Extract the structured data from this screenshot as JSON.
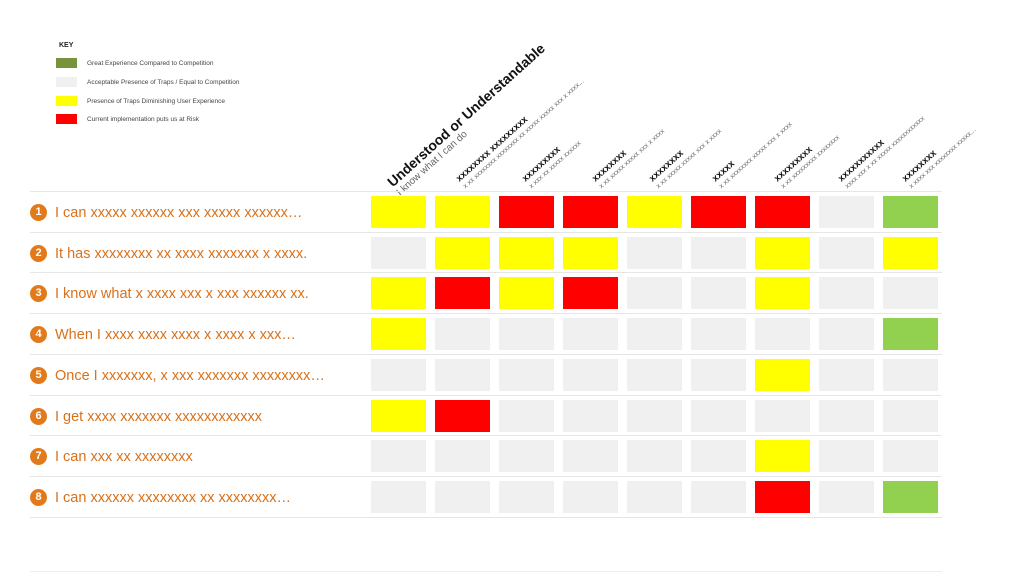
{
  "key": {
    "title": "KEY",
    "items": [
      {
        "label": "Great Experience Compared to Competition",
        "color": "#77933c"
      },
      {
        "label": "Acceptable Presence of Traps / Equal to Competition",
        "color": "#f0f0f0"
      },
      {
        "label": "Presence of Traps Diminishing User Experience",
        "color": "#ffff00"
      },
      {
        "label": "Current implementation puts us at Risk",
        "color": "#ff0000"
      }
    ]
  },
  "colors": {
    "green": "#92d050",
    "grey": "#f0f0f0",
    "yellow": "#ffff00",
    "red": "#ff0000",
    "row_text": "#d9711a",
    "row_number_bg": "#e27a1c"
  },
  "columns": [
    {
      "title": "Understood or Understandable",
      "subtitle": "I know what I can do"
    },
    {
      "title": "xxxxxxxx xxxxxxxxx",
      "subtitle": "x xx xxxxxxxx xxxxxxxx xx xxxxx xxxxx xxx x xxxx..."
    },
    {
      "title": "xxxxxxxxx",
      "subtitle": "x xxx xx xxxxx xxxxxx"
    },
    {
      "title": "xxxxxxxx",
      "subtitle": "x xx xxxxx xxxxx xxx x xxxx"
    },
    {
      "title": "xxxxxxxx",
      "subtitle": "x xx xxxxx xxxxx xxx x xxxx"
    },
    {
      "title": "xxxxx",
      "subtitle": "x xx xxxxxxxx xxxxx xxx x xxxx"
    },
    {
      "title": "xxxxxxxxx",
      "subtitle": "x xx xxxxxxxxx xxxxxxxx"
    },
    {
      "title": "xxxxxxxxxxx",
      "subtitle": "xxxx xxx x xx xxxxx xxxxxxxxxxxx"
    },
    {
      "title": "xxxxxxxx",
      "subtitle": "x xxxx xxx xxxxxxxx xxxxx..."
    }
  ],
  "rows": [
    {
      "number": "1",
      "label": "I can xxxxx xxxxxx xxx xxxxx xxxxxx…",
      "cells": [
        "yellow",
        "yellow",
        "red",
        "red",
        "yellow",
        "red",
        "red",
        "grey",
        "green"
      ]
    },
    {
      "number": "2",
      "label": "It has xxxxxxxx xx xxxx xxxxxxx x xxxx.",
      "cells": [
        "grey",
        "yellow",
        "yellow",
        "yellow",
        "grey",
        "grey",
        "yellow",
        "grey",
        "yellow"
      ]
    },
    {
      "number": "3",
      "label": "I know what x xxxx xxx x xxx xxxxxx xx.",
      "cells": [
        "yellow",
        "red",
        "yellow",
        "red",
        "grey",
        "grey",
        "yellow",
        "grey",
        "grey"
      ]
    },
    {
      "number": "4",
      "label": "When I xxxx xxxx xxxx x xxxx x xxx…",
      "cells": [
        "yellow",
        "grey",
        "grey",
        "grey",
        "grey",
        "grey",
        "grey",
        "grey",
        "green"
      ]
    },
    {
      "number": "5",
      "label": "Once I xxxxxxx, x xxx xxxxxxx xxxxxxxx…",
      "cells": [
        "grey",
        "grey",
        "grey",
        "grey",
        "grey",
        "grey",
        "yellow",
        "grey",
        "grey"
      ]
    },
    {
      "number": "6",
      "label": "I get xxxx xxxxxxx xxxxxxxxxxxx",
      "cells": [
        "yellow",
        "red",
        "grey",
        "grey",
        "grey",
        "grey",
        "grey",
        "grey",
        "grey"
      ]
    },
    {
      "number": "7",
      "label": "I can xxx xx xxxxxxxx",
      "cells": [
        "grey",
        "grey",
        "grey",
        "grey",
        "grey",
        "grey",
        "yellow",
        "grey",
        "grey"
      ]
    },
    {
      "number": "8",
      "label": "I can xxxxxx xxxxxxxx xx xxxxxxxx…",
      "cells": [
        "grey",
        "grey",
        "grey",
        "grey",
        "grey",
        "grey",
        "red",
        "grey",
        "green"
      ]
    }
  ]
}
